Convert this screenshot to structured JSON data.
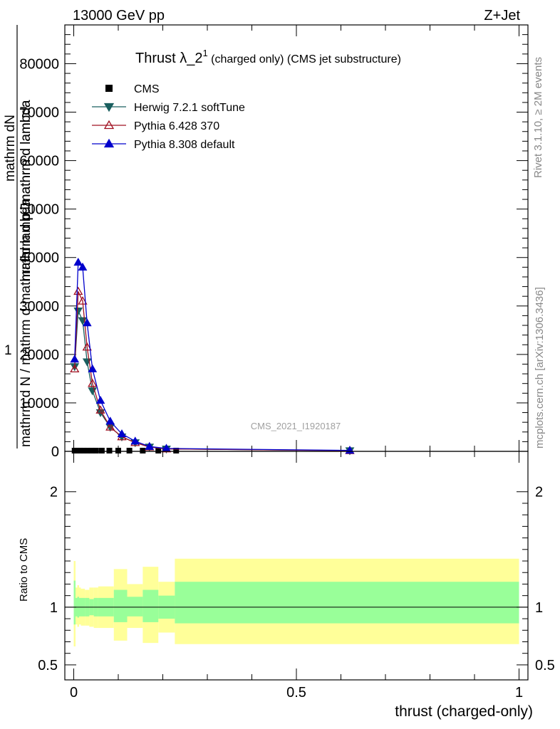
{
  "header": {
    "energy_label": "13000 GeV pp",
    "process_label": "Z+Jet"
  },
  "side_labels": {
    "rivet": "Rivet 3.1.10, ≥ 2M events",
    "mcplots": "mcplots.cern.ch [arXiv:1306.3436]"
  },
  "watermark": "CMS_2021_I1920187",
  "chart_data": [
    {
      "type": "line",
      "title_main": "Thrust λ_2",
      "title_sup": "1",
      "title_rest": " (charged only) (CMS jet substructure)",
      "ylabel_top": "mathrm dN",
      "ylabel_mid": "mathrm d p_mathrm d lambda",
      "ylabel_mid2": "mathrm d p_mathrm d lambda",
      "ylabel_one": "1",
      "ylabel_bottom": "mathrm d N / mathrm d mathrm d lambda",
      "xlim": [
        -0.02,
        1.02
      ],
      "ylim": [
        0,
        88000
      ],
      "ytick_values": [
        0,
        10000,
        20000,
        30000,
        40000,
        50000,
        60000,
        70000,
        80000
      ],
      "ytick_labels": [
        "0",
        "10000",
        "20000",
        "30000",
        "40000",
        "50000",
        "60000",
        "70000",
        "80000"
      ],
      "legend_position": "top-left",
      "series": [
        {
          "name": "CMS",
          "color": "#000000",
          "marker": "square",
          "x": [
            0.002,
            0.008,
            0.015,
            0.022,
            0.03,
            0.04,
            0.05,
            0.063,
            0.08,
            0.1,
            0.125,
            0.155,
            0.19,
            0.23,
            0.62
          ],
          "values": [
            150,
            150,
            150,
            150,
            150,
            150,
            150,
            150,
            150,
            150,
            150,
            150,
            150,
            150,
            150
          ]
        },
        {
          "name": "Herwig 7.2.1 softTune",
          "color": "#1a5f5f",
          "marker": "triangle-down",
          "x": [
            0.002,
            0.01,
            0.02,
            0.03,
            0.042,
            0.06,
            0.082,
            0.108,
            0.138,
            0.17,
            0.208,
            0.62
          ],
          "values": [
            17500,
            29000,
            27000,
            18500,
            12500,
            8000,
            5000,
            3000,
            1800,
            900,
            500,
            150
          ]
        },
        {
          "name": "Pythia 6.428 370",
          "color": "#a01020",
          "marker": "triangle-open",
          "x": [
            0.002,
            0.01,
            0.02,
            0.03,
            0.042,
            0.06,
            0.082,
            0.108,
            0.138,
            0.17,
            0.208,
            0.62
          ],
          "values": [
            17000,
            33000,
            31000,
            21500,
            14000,
            8500,
            5000,
            3000,
            1800,
            900,
            500,
            150
          ]
        },
        {
          "name": "Pythia 8.308 default",
          "color": "#0000cc",
          "marker": "triangle-up",
          "x": [
            0.002,
            0.01,
            0.02,
            0.03,
            0.042,
            0.06,
            0.082,
            0.108,
            0.138,
            0.17,
            0.208,
            0.62
          ],
          "values": [
            19000,
            39000,
            38000,
            26500,
            17000,
            10500,
            6200,
            3600,
            2100,
            1000,
            600,
            200
          ]
        }
      ]
    },
    {
      "type": "area",
      "ylabel": "Ratio to CMS",
      "xlabel": "thrust (charged-only)",
      "xlim": [
        -0.02,
        1.02
      ],
      "ylim": [
        0.37,
        2.35
      ],
      "ytick_values": [
        0.5,
        1,
        2
      ],
      "ytick_labels": [
        "0.5",
        "1",
        "2"
      ],
      "xtick_values": [
        0,
        0.5,
        1
      ],
      "xtick_labels": [
        "0",
        "0.5",
        "1"
      ],
      "bins": [
        0,
        0.004,
        0.008,
        0.012,
        0.016,
        0.02,
        0.025,
        0.035,
        0.045,
        0.055,
        0.09,
        0.12,
        0.155,
        0.19,
        0.227,
        1.0
      ],
      "yellow_band_lo": [
        0.66,
        0.85,
        0.83,
        0.85,
        0.84,
        0.84,
        0.84,
        0.83,
        0.82,
        0.82,
        0.71,
        0.82,
        0.69,
        0.78,
        0.68
      ],
      "yellow_band_hi": [
        1.4,
        1.17,
        1.19,
        1.17,
        1.16,
        1.16,
        1.15,
        1.17,
        1.17,
        1.18,
        1.33,
        1.2,
        1.35,
        1.22,
        1.42
      ],
      "green_band_lo": [
        0.85,
        0.92,
        0.91,
        0.92,
        0.92,
        0.92,
        0.92,
        0.93,
        0.92,
        0.92,
        0.87,
        0.92,
        0.87,
        0.9,
        0.86
      ],
      "green_band_hi": [
        1.23,
        1.08,
        1.09,
        1.08,
        1.08,
        1.08,
        1.08,
        1.07,
        1.08,
        1.08,
        1.15,
        1.09,
        1.15,
        1.1,
        1.22
      ],
      "reference": 1.0
    }
  ]
}
